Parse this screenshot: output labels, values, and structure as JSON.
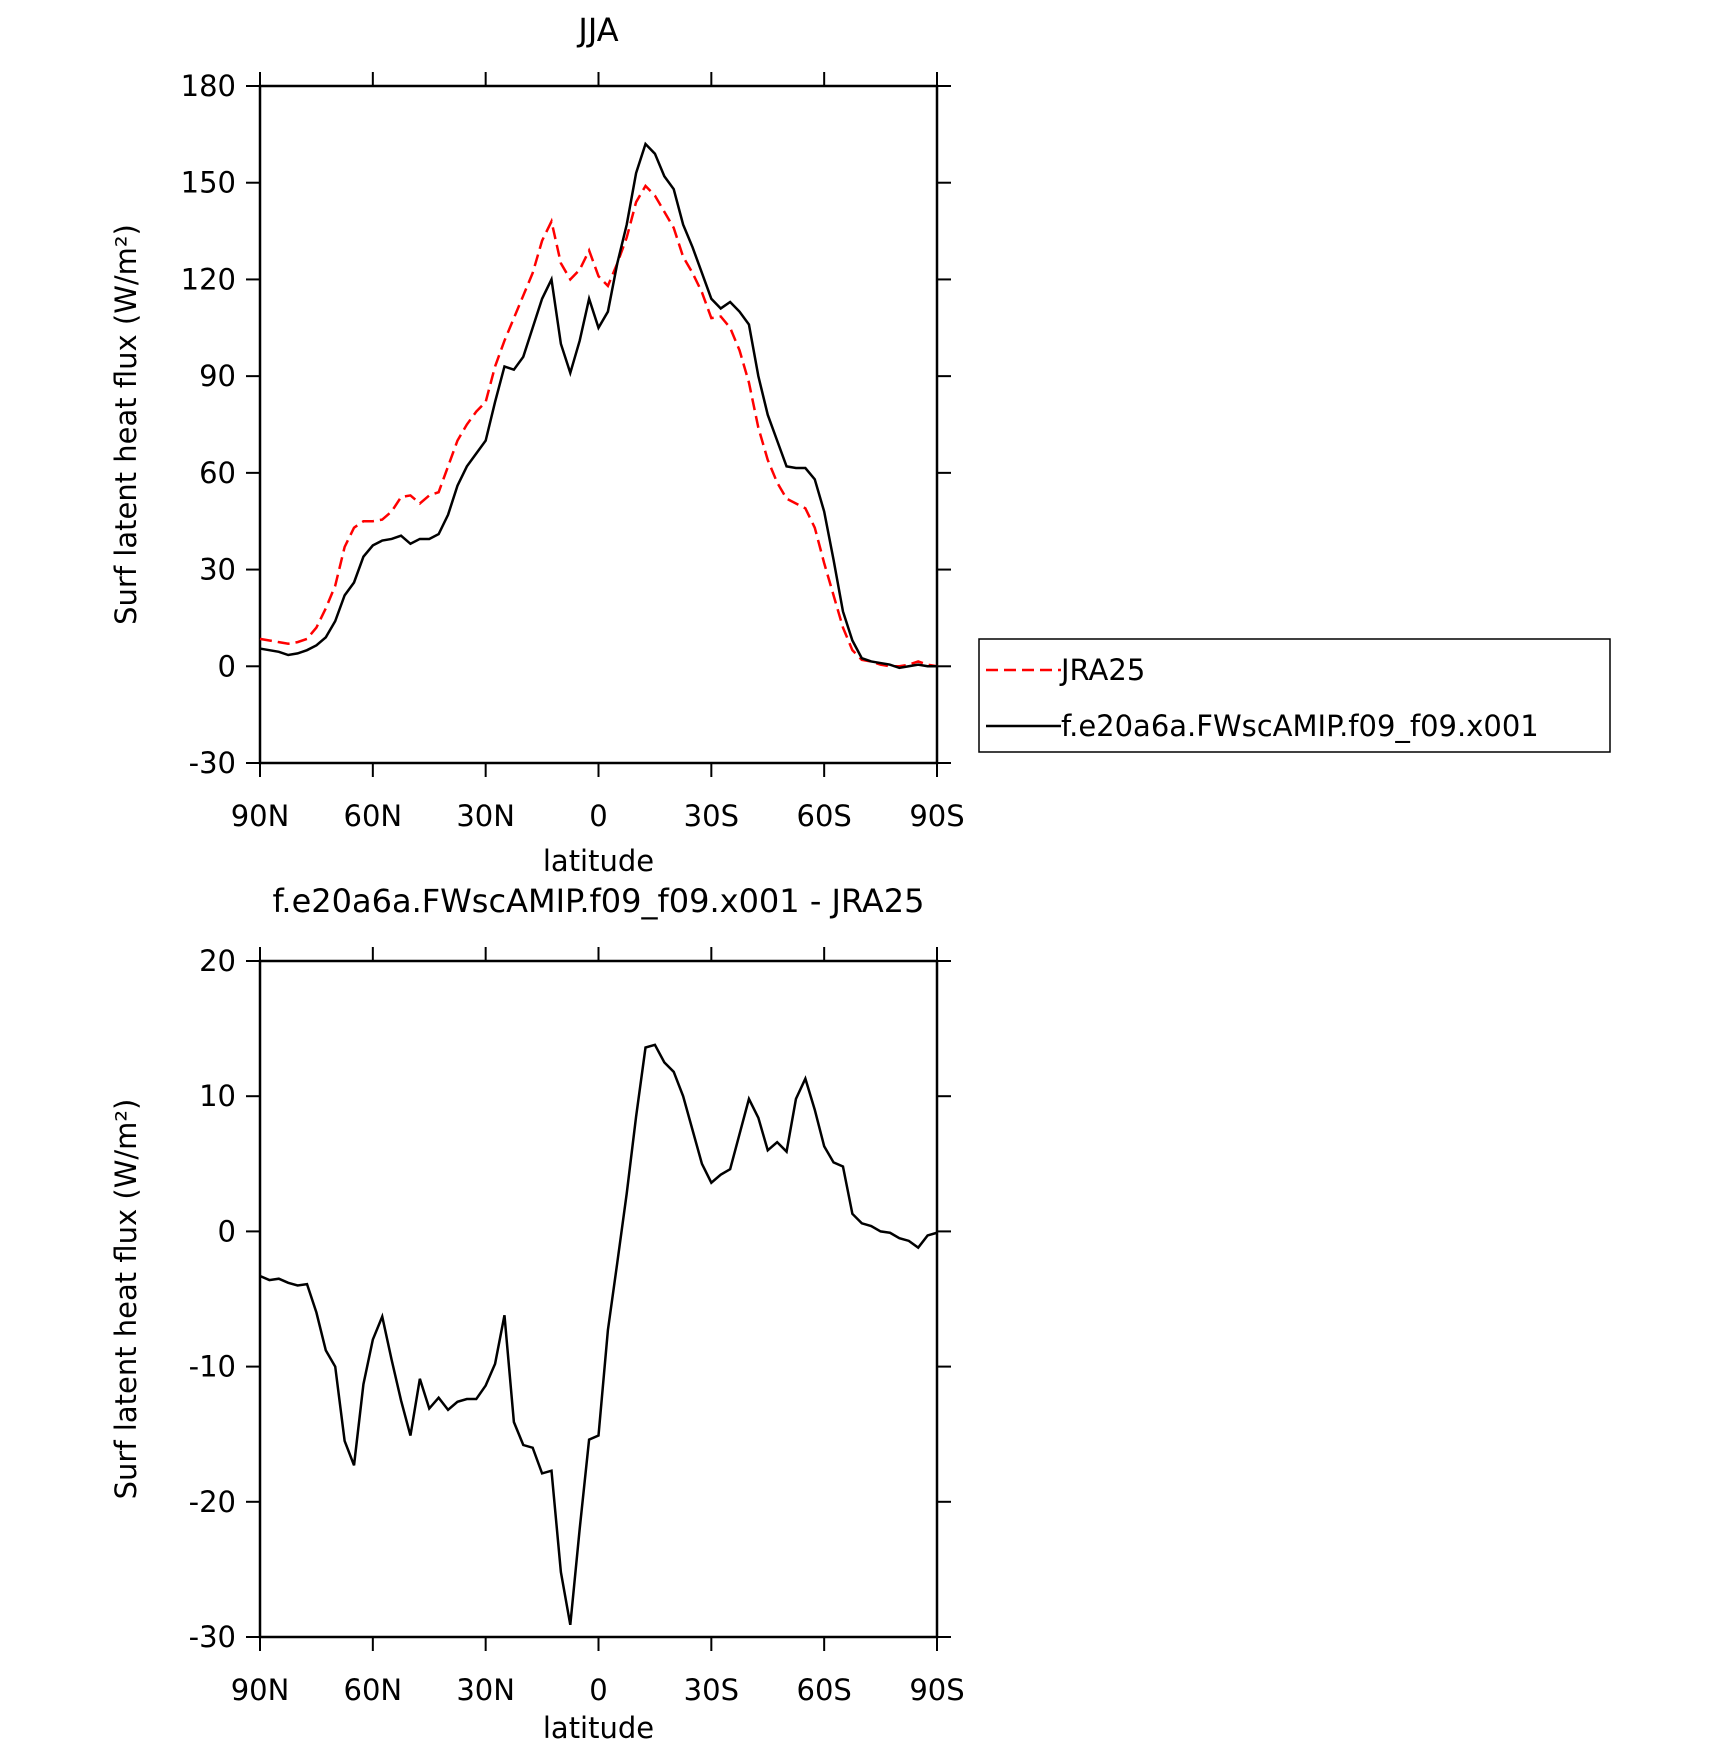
{
  "chart_data": [
    {
      "type": "line",
      "title": "JJA",
      "xlabel": "latitude",
      "ylabel": "Surf latent heat flux (W/m²)",
      "x": [
        90,
        87.5,
        85,
        82.5,
        80,
        77.5,
        75,
        72.5,
        70,
        67.5,
        65,
        62.5,
        60,
        57.5,
        55,
        52.5,
        50,
        47.5,
        45,
        42.5,
        40,
        37.5,
        35,
        32.5,
        30,
        27.5,
        25,
        22.5,
        20,
        17.5,
        15,
        12.5,
        10,
        7.5,
        5,
        2.5,
        0,
        -2.5,
        -5,
        -7.5,
        -10,
        -12.5,
        -15,
        -17.5,
        -20,
        -22.5,
        -25,
        -27.5,
        -30,
        -32.5,
        -35,
        -37.5,
        -40,
        -42.5,
        -45,
        -47.5,
        -50,
        -52.5,
        -55,
        -57.5,
        -60,
        -62.5,
        -65,
        -67.5,
        -70,
        -72.5,
        -75,
        -77.5,
        -80,
        -82.5,
        -85,
        -87.5,
        -90
      ],
      "xlim": [
        90,
        -90
      ],
      "xticks": [
        {
          "value": 90,
          "label": "90N"
        },
        {
          "value": 60,
          "label": "60N"
        },
        {
          "value": 30,
          "label": "30N"
        },
        0,
        {
          "value": -30,
          "label": "30S"
        },
        {
          "value": -60,
          "label": "60S"
        },
        {
          "value": -90,
          "label": "90S"
        }
      ],
      "ylim": [
        -30,
        180
      ],
      "yticks": [
        -30,
        0,
        30,
        60,
        90,
        120,
        150,
        180
      ],
      "legend": "right",
      "series": [
        {
          "name": "JRA25",
          "color": "#ff0000",
          "style": "dashed",
          "values": [
            8.5,
            8,
            7.5,
            7,
            7.5,
            8.5,
            12,
            18,
            25,
            37,
            43,
            45,
            45,
            45.5,
            48,
            52.5,
            53,
            50.5,
            53,
            54,
            62,
            70,
            75,
            79,
            82,
            93,
            101,
            108,
            115,
            122,
            132,
            138,
            125,
            120,
            123,
            129,
            121,
            118,
            125,
            133,
            144,
            149,
            146,
            141,
            136,
            127,
            122,
            116,
            108,
            108.5,
            105,
            98,
            88,
            74,
            64,
            57,
            52,
            50.5,
            49,
            43,
            32,
            22,
            12,
            5,
            2,
            1.5,
            0.5,
            0,
            0,
            0.5,
            1.5,
            0.5,
            0
          ]
        },
        {
          "name": "f.e20a6a.FWscAMIP.f09_f09.x001",
          "color": "#000000",
          "style": "solid",
          "values": [
            5.5,
            5,
            4.5,
            3.5,
            4,
            5,
            6.5,
            9,
            14,
            22,
            26,
            34,
            37.5,
            39,
            39.5,
            40.5,
            38,
            39.5,
            39.5,
            41,
            47,
            56,
            62,
            66,
            70,
            82,
            93,
            92,
            96,
            105,
            114,
            120,
            100,
            91,
            101,
            114,
            105,
            110,
            125,
            137,
            153,
            162,
            159,
            152,
            148,
            137,
            130,
            122,
            114,
            111,
            113,
            110,
            106,
            90,
            78,
            70,
            62,
            61.5,
            61.5,
            58,
            48,
            33,
            17,
            8,
            2.5,
            1.5,
            1,
            0.5,
            -0.5,
            0,
            0.5,
            0,
            0
          ]
        }
      ]
    },
    {
      "type": "line",
      "title": "f.e20a6a.FWscAMIP.f09_f09.x001 - JRA25",
      "xlabel": "latitude",
      "ylabel": "Surf latent heat flux (W/m²)",
      "x": [
        90,
        87.5,
        85,
        82.5,
        80,
        77.5,
        75,
        72.5,
        70,
        67.5,
        65,
        62.5,
        60,
        57.5,
        55,
        52.5,
        50,
        47.5,
        45,
        42.5,
        40,
        37.5,
        35,
        32.5,
        30,
        27.5,
        25,
        22.5,
        20,
        17.5,
        15,
        12.5,
        10,
        7.5,
        5,
        2.5,
        0,
        -2.5,
        -5,
        -7.5,
        -10,
        -12.5,
        -15,
        -17.5,
        -20,
        -22.5,
        -25,
        -27.5,
        -30,
        -32.5,
        -35,
        -37.5,
        -40,
        -42.5,
        -45,
        -47.5,
        -50,
        -52.5,
        -55,
        -57.5,
        -60,
        -62.5,
        -65,
        -67.5,
        -70,
        -72.5,
        -75,
        -77.5,
        -80,
        -82.5,
        -85,
        -87.5,
        -90
      ],
      "xlim": [
        90,
        -90
      ],
      "xticks": [
        {
          "value": 90,
          "label": "90N"
        },
        {
          "value": 60,
          "label": "60N"
        },
        {
          "value": 30,
          "label": "30N"
        },
        0,
        {
          "value": -30,
          "label": "30S"
        },
        {
          "value": -60,
          "label": "60S"
        },
        {
          "value": -90,
          "label": "90S"
        }
      ],
      "ylim": [
        -30,
        20
      ],
      "yticks": [
        -30,
        -20,
        -10,
        0,
        10,
        20
      ],
      "series": [
        {
          "color": "#000000",
          "style": "solid",
          "values": [
            -3.3,
            -3.6,
            -3.5,
            -3.8,
            -4,
            -3.9,
            -6,
            -8.8,
            -10,
            -15.5,
            -17.3,
            -11.3,
            -8,
            -6.3,
            -9.5,
            -12.5,
            -15.1,
            -10.9,
            -13.1,
            -12.3,
            -13.2,
            -12.6,
            -12.4,
            -12.4,
            -11.4,
            -9.8,
            -6.2,
            -14.1,
            -15.8,
            -16,
            -17.9,
            -17.7,
            -25.2,
            -29.1,
            -22,
            -15.4,
            -15.1,
            -7.3,
            -2.3,
            2.8,
            8.5,
            13.6,
            13.8,
            12.5,
            11.8,
            10,
            7.5,
            5,
            3.6,
            4.2,
            4.6,
            7.2,
            9.8,
            8.4,
            6,
            6.6,
            5.9,
            9.8,
            11.3,
            9,
            6.3,
            5.1,
            4.8,
            1.3,
            0.6,
            0.4,
            0,
            -0.1,
            -0.5,
            -0.7,
            -1.2,
            -0.3,
            -0.1
          ]
        }
      ]
    }
  ]
}
